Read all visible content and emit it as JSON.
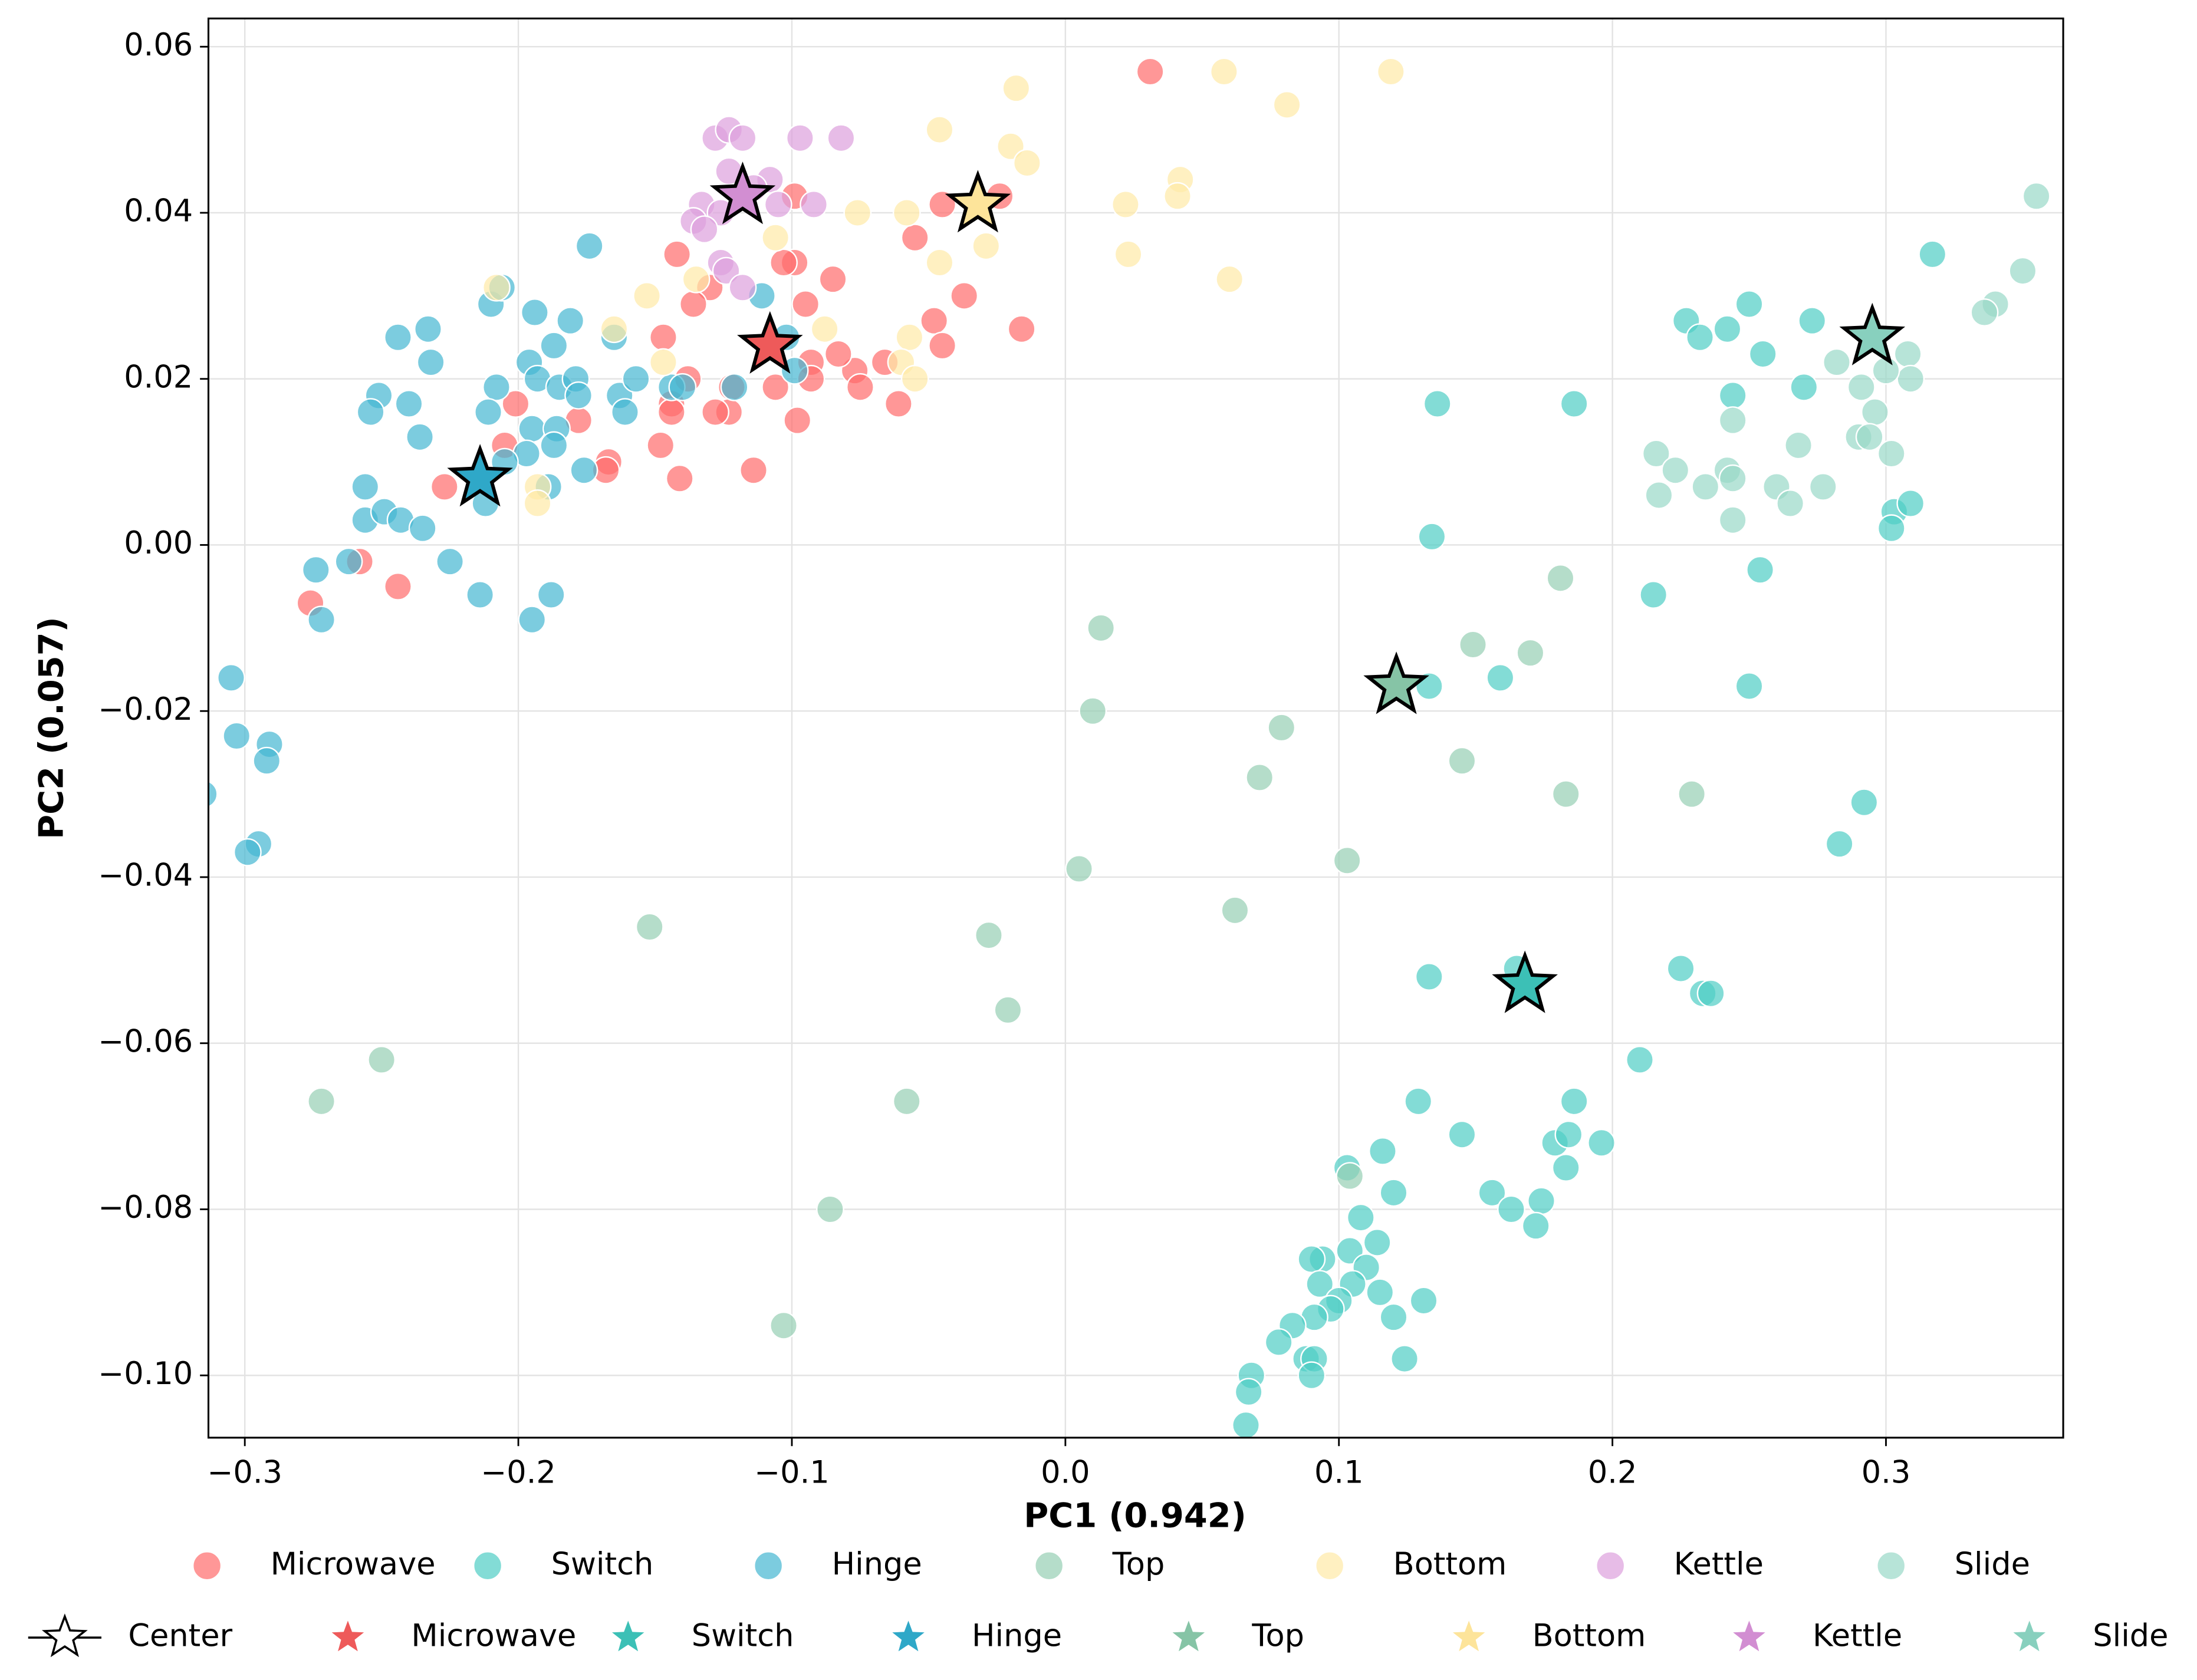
{
  "chart_data": {
    "type": "scatter",
    "xlabel": "PC1 (0.942)",
    "ylabel": "PC2 (0.057)",
    "xlim": [
      -0.3133,
      0.3648
    ],
    "ylim": [
      -0.1075,
      0.0634
    ],
    "xticks": [
      {
        "value": -0.3,
        "label": "−0.3"
      },
      {
        "value": -0.2,
        "label": "−0.2"
      },
      {
        "value": -0.1,
        "label": "−0.1"
      },
      {
        "value": 0,
        "label": "0.0"
      },
      0.1,
      0.2,
      0.3
    ],
    "yticks": [
      0.06,
      0.04,
      0.02,
      {
        "value": 0,
        "label": "0.00"
      },
      {
        "value": -0.02,
        "label": "−0.02"
      },
      {
        "value": -0.04,
        "label": "−0.04"
      },
      {
        "value": -0.06,
        "label": "−0.06"
      },
      {
        "value": -0.08,
        "label": "−0.08"
      },
      {
        "value": -0.1,
        "label": "−0.10"
      }
    ],
    "grid": true,
    "series": [
      {
        "name": "Microwave",
        "color": "#ff6b6b",
        "x": [
          0.031,
          -0.045,
          -0.024,
          -0.055,
          -0.037,
          -0.048,
          -0.045,
          -0.016,
          -0.066,
          -0.061,
          -0.077,
          -0.075,
          -0.083,
          -0.085,
          -0.095,
          -0.093,
          -0.093,
          -0.099,
          -0.103,
          -0.099,
          -0.106,
          -0.098,
          -0.114,
          -0.122,
          -0.123,
          -0.128,
          -0.13,
          -0.136,
          -0.142,
          -0.147,
          -0.138,
          -0.144,
          -0.144,
          -0.148,
          -0.141,
          -0.167,
          -0.168,
          -0.178,
          -0.201,
          -0.205,
          -0.227,
          -0.258,
          -0.244,
          -0.276
        ],
        "y": [
          0.057,
          0.041,
          0.042,
          0.037,
          0.03,
          0.027,
          0.024,
          0.026,
          0.022,
          0.017,
          0.021,
          0.019,
          0.023,
          0.032,
          0.029,
          0.022,
          0.02,
          0.034,
          0.034,
          0.042,
          0.019,
          0.015,
          0.009,
          0.019,
          0.016,
          0.016,
          0.031,
          0.029,
          0.035,
          0.025,
          0.02,
          0.017,
          0.016,
          0.012,
          0.008,
          0.01,
          0.009,
          0.015,
          0.017,
          0.012,
          0.007,
          -0.002,
          -0.005,
          -0.007
        ]
      },
      {
        "name": "Switch",
        "color": "#4ecdc4",
        "x": [
          0.136,
          0.186,
          0.134,
          0.227,
          0.232,
          0.242,
          0.25,
          0.255,
          0.273,
          0.244,
          0.27,
          0.317,
          0.303,
          0.309,
          0.302,
          0.254,
          0.215,
          0.25,
          0.159,
          0.133,
          0.292,
          0.283,
          0.133,
          0.225,
          0.233,
          0.236,
          0.21,
          0.165,
          0.186,
          0.129,
          0.145,
          0.196,
          0.179,
          0.184,
          0.183,
          0.116,
          0.103,
          0.12,
          0.156,
          0.174,
          0.163,
          0.172,
          0.108,
          0.104,
          0.114,
          0.094,
          0.09,
          0.11,
          0.093,
          0.105,
          0.115,
          0.131,
          0.1,
          0.097,
          0.091,
          0.12,
          0.083,
          0.078,
          0.088,
          0.091,
          0.124,
          0.09,
          0.068,
          0.067,
          0.066
        ],
        "y": [
          0.017,
          0.017,
          0.001,
          0.027,
          0.025,
          0.026,
          0.029,
          0.023,
          0.027,
          0.018,
          0.019,
          0.035,
          0.004,
          0.005,
          0.002,
          -0.003,
          -0.006,
          -0.017,
          -0.016,
          -0.017,
          -0.031,
          -0.036,
          -0.052,
          -0.051,
          -0.054,
          -0.054,
          -0.062,
          -0.051,
          -0.067,
          -0.067,
          -0.071,
          -0.072,
          -0.072,
          -0.071,
          -0.075,
          -0.073,
          -0.075,
          -0.078,
          -0.078,
          -0.079,
          -0.08,
          -0.082,
          -0.081,
          -0.085,
          -0.084,
          -0.086,
          -0.086,
          -0.087,
          -0.089,
          -0.089,
          -0.09,
          -0.091,
          -0.091,
          -0.092,
          -0.093,
          -0.093,
          -0.094,
          -0.096,
          -0.098,
          -0.098,
          -0.098,
          -0.1,
          -0.1,
          -0.102,
          -0.106
        ]
      },
      {
        "name": "Hinge",
        "color": "#45b7d1",
        "x": [
          -0.174,
          -0.21,
          -0.206,
          -0.194,
          -0.181,
          -0.244,
          -0.233,
          -0.232,
          -0.251,
          -0.254,
          -0.24,
          -0.236,
          -0.208,
          -0.211,
          -0.196,
          -0.193,
          -0.187,
          -0.185,
          -0.179,
          -0.178,
          -0.195,
          -0.186,
          -0.187,
          -0.197,
          -0.205,
          -0.176,
          -0.189,
          -0.165,
          -0.163,
          -0.161,
          -0.157,
          -0.144,
          -0.14,
          -0.121,
          -0.111,
          -0.102,
          -0.099,
          -0.212,
          -0.256,
          -0.256,
          -0.249,
          -0.243,
          -0.235,
          -0.262,
          -0.274,
          -0.225,
          -0.214,
          -0.188,
          -0.195,
          -0.272,
          -0.305,
          -0.303,
          -0.291,
          -0.292,
          -0.295,
          -0.299,
          -0.315
        ],
        "y": [
          0.036,
          0.029,
          0.031,
          0.028,
          0.027,
          0.025,
          0.026,
          0.022,
          0.018,
          0.016,
          0.017,
          0.013,
          0.019,
          0.016,
          0.022,
          0.02,
          0.024,
          0.019,
          0.02,
          0.018,
          0.014,
          0.014,
          0.012,
          0.011,
          0.01,
          0.009,
          0.007,
          0.025,
          0.018,
          0.016,
          0.02,
          0.019,
          0.019,
          0.019,
          0.03,
          0.025,
          0.021,
          0.005,
          0.007,
          0.003,
          0.004,
          0.003,
          0.002,
          -0.002,
          -0.003,
          -0.002,
          -0.006,
          -0.006,
          -0.009,
          -0.009,
          -0.016,
          -0.023,
          -0.024,
          -0.026,
          -0.036,
          -0.037,
          -0.03
        ]
      },
      {
        "name": "Top",
        "color": "#96ceb4",
        "x": [
          0.013,
          0.01,
          0.079,
          0.071,
          0.005,
          0.062,
          0.103,
          -0.028,
          -0.021,
          -0.058,
          -0.086,
          -0.103,
          -0.152,
          -0.25,
          -0.272,
          0.149,
          0.17,
          0.181,
          0.145,
          0.183,
          0.229,
          0.104
        ],
        "y": [
          -0.01,
          -0.02,
          -0.022,
          -0.028,
          -0.039,
          -0.044,
          -0.038,
          -0.047,
          -0.056,
          -0.067,
          -0.08,
          -0.094,
          -0.046,
          -0.062,
          -0.067,
          -0.012,
          -0.013,
          -0.004,
          -0.026,
          -0.03,
          -0.03,
          -0.076
        ]
      },
      {
        "name": "Bottom",
        "color": "#ffeaa7",
        "x": [
          0.058,
          0.081,
          0.119,
          -0.018,
          -0.046,
          -0.02,
          -0.014,
          0.042,
          0.041,
          0.022,
          -0.076,
          -0.058,
          -0.029,
          -0.106,
          -0.046,
          0.023,
          0.06,
          -0.135,
          -0.153,
          -0.208,
          -0.088,
          -0.057,
          -0.06,
          -0.055,
          -0.147,
          -0.165,
          -0.193,
          -0.193
        ],
        "y": [
          0.057,
          0.053,
          0.057,
          0.055,
          0.05,
          0.048,
          0.046,
          0.044,
          0.042,
          0.041,
          0.04,
          0.04,
          0.036,
          0.037,
          0.034,
          0.035,
          0.032,
          0.032,
          0.03,
          0.031,
          0.026,
          0.025,
          0.022,
          0.02,
          0.022,
          0.026,
          0.007,
          0.005
        ]
      },
      {
        "name": "Kettle",
        "color": "#dda0dd",
        "x": [
          -0.128,
          -0.123,
          -0.118,
          -0.097,
          -0.082,
          -0.123,
          -0.108,
          -0.092,
          -0.105,
          -0.133,
          -0.126,
          -0.136,
          -0.132,
          -0.126,
          -0.124,
          -0.118,
          -0.114
        ],
        "y": [
          0.049,
          0.05,
          0.049,
          0.049,
          0.049,
          0.045,
          0.044,
          0.041,
          0.041,
          0.041,
          0.04,
          0.039,
          0.038,
          0.034,
          0.033,
          0.031,
          0.043
        ]
      },
      {
        "name": "Slide",
        "color": "#98d8c8",
        "x": [
          0.355,
          0.35,
          0.34,
          0.336,
          0.308,
          0.309,
          0.3,
          0.282,
          0.291,
          0.296,
          0.244,
          0.29,
          0.294,
          0.302,
          0.268,
          0.216,
          0.223,
          0.242,
          0.217,
          0.234,
          0.244,
          0.26,
          0.265,
          0.277,
          0.244
        ],
        "y": [
          0.042,
          0.033,
          0.029,
          0.028,
          0.023,
          0.02,
          0.021,
          0.022,
          0.019,
          0.016,
          0.015,
          0.013,
          0.013,
          0.011,
          0.012,
          0.011,
          0.009,
          0.009,
          0.006,
          0.007,
          0.008,
          0.007,
          0.005,
          0.007,
          0.003
        ]
      }
    ],
    "centers": {
      "name": "Center",
      "series": [
        {
          "name": "Microwave",
          "color": "#ee5a5a",
          "x": [
            -0.108
          ],
          "y": [
            0.024
          ]
        },
        {
          "name": "Switch",
          "color": "#3cc0b6",
          "x": [
            0.168
          ],
          "y": [
            -0.053
          ]
        },
        {
          "name": "Hinge",
          "color": "#2fa8c8",
          "x": [
            -0.214
          ],
          "y": [
            0.008
          ]
        },
        {
          "name": "Top",
          "color": "#86c4a6",
          "x": [
            0.121
          ],
          "y": [
            -0.017
          ]
        },
        {
          "name": "Bottom",
          "color": "#fde49a",
          "x": [
            -0.032
          ],
          "y": [
            0.041
          ]
        },
        {
          "name": "Kettle",
          "color": "#d28ed2",
          "x": [
            -0.118
          ],
          "y": [
            0.042
          ]
        },
        {
          "name": "Slide",
          "color": "#88d0be",
          "x": [
            0.295
          ],
          "y": [
            0.025
          ]
        }
      ]
    }
  }
}
